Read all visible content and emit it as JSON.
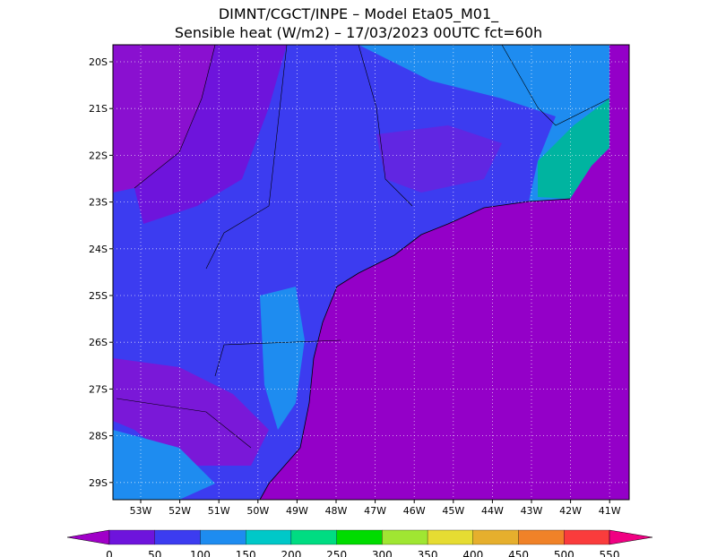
{
  "header": {
    "line1": "DIMNT/CGCT/INPE –  Model Eta05_M01_",
    "line2": "Sensible heat (W/m2) –  17/03/2023 00UTC fct=60h"
  },
  "map": {
    "lat_labels": [
      "20S",
      "21S",
      "22S",
      "23S",
      "24S",
      "25S",
      "26S",
      "27S",
      "28S",
      "29S"
    ],
    "lon_labels": [
      "53W",
      "52W",
      "51W",
      "50W",
      "49W",
      "48W",
      "47W",
      "46W",
      "45W",
      "44W",
      "43W",
      "42W",
      "41W"
    ]
  },
  "colorbar": {
    "labels": [
      0,
      50,
      100,
      150,
      200,
      250,
      300,
      350,
      400,
      450,
      500,
      550
    ],
    "under_color": "#a000c8",
    "over_color": "#f00082",
    "colors": [
      "#6e14dc",
      "#3c3cf0",
      "#1e8cf0",
      "#00c8c8",
      "#00dc82",
      "#00dc00",
      "#a0e632",
      "#e6dc32",
      "#e6af2d",
      "#f08228",
      "#fa3c3c"
    ]
  }
}
